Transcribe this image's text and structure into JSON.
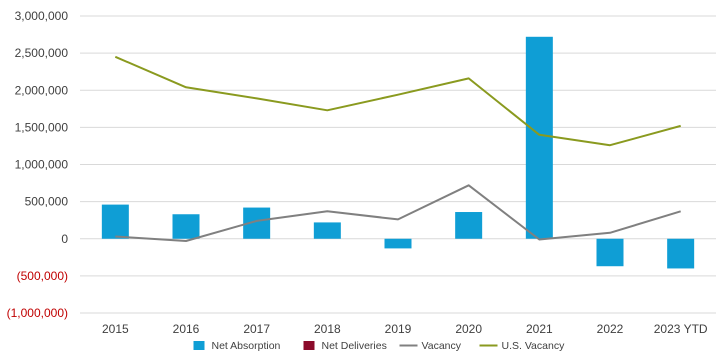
{
  "chart_data": {
    "type": "bar",
    "categories": [
      "2015",
      "2016",
      "2017",
      "2018",
      "2019",
      "2020",
      "2021",
      "2022",
      "2023 YTD"
    ],
    "ylim": [
      -1000000,
      3000000
    ],
    "y_ticks": [
      {
        "value": 3000000,
        "label": "3,000,000"
      },
      {
        "value": 2500000,
        "label": "2,500,000"
      },
      {
        "value": 2000000,
        "label": "2,000,000"
      },
      {
        "value": 1500000,
        "label": "1,500,000"
      },
      {
        "value": 1000000,
        "label": "1,000,000"
      },
      {
        "value": 500000,
        "label": "500,000"
      },
      {
        "value": 0,
        "label": "0"
      },
      {
        "value": -500000,
        "label": "(500,000)"
      },
      {
        "value": -1000000,
        "label": "(1,000,000)"
      }
    ],
    "grid": true,
    "legend_position": "bottom",
    "series": [
      {
        "name": "Net Absorption",
        "kind": "bar",
        "color": "#0f9ed5",
        "values": [
          460000,
          330000,
          420000,
          220000,
          -130000,
          360000,
          2720000,
          -370000,
          -400000
        ]
      },
      {
        "name": "Net Deliveries",
        "kind": "bar",
        "color": "#8b0a2a",
        "values": [
          0,
          0,
          0,
          0,
          0,
          0,
          0,
          0,
          0
        ]
      },
      {
        "name": "Vacancy",
        "kind": "line",
        "color": "#808080",
        "values": [
          30000,
          -30000,
          240000,
          370000,
          260000,
          720000,
          -10000,
          80000,
          370000
        ]
      },
      {
        "name": "U.S. Vacancy",
        "kind": "line",
        "color": "#8a9a1f",
        "values": [
          2450000,
          2040000,
          1890000,
          1730000,
          1940000,
          2160000,
          1400000,
          1260000,
          1520000
        ]
      }
    ]
  }
}
